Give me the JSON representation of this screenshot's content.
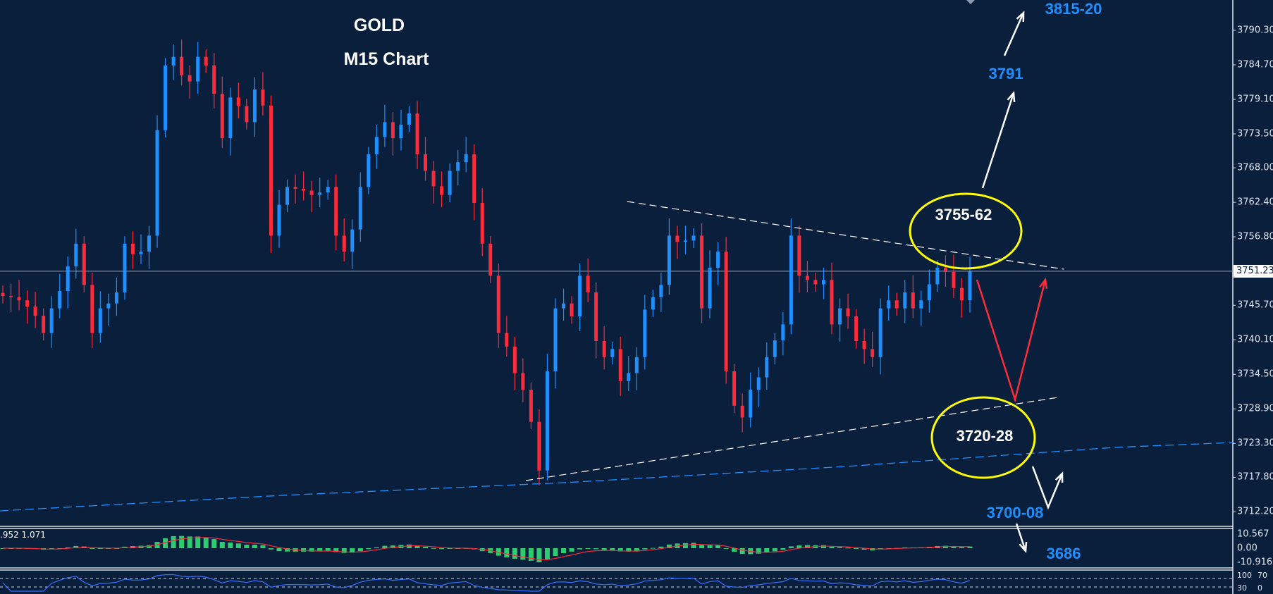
{
  "title": {
    "line1": "GOLD",
    "line2": "M15 Chart"
  },
  "colors": {
    "background": "#0a1f3c",
    "bull": "#1e8fff",
    "bear": "#ff2a3a",
    "zone_circle": "#ffff00",
    "target_text": "#1e8fff",
    "macd_hist": "#2ecc71",
    "macd_signal": "#ff2a3a",
    "rsi_line": "#3a6fff",
    "ma_line": "#1e8fff"
  },
  "chart_data": {
    "type": "candlestick",
    "symbol": "GOLD",
    "timeframe": "M15",
    "ylim": [
      3709,
      3795
    ],
    "y_ticks": [
      "3790.30",
      "3784.70",
      "3779.10",
      "3773.50",
      "3768.00",
      "3762.40",
      "3756.80",
      "3745.70",
      "3740.10",
      "3734.50",
      "3728.90",
      "3723.30",
      "3717.80",
      "3712.20"
    ],
    "current_price": "3751.23",
    "closes": [
      3747.2,
      3747,
      3746.5,
      3745.5,
      3744,
      3741.2,
      3745.2,
      3748,
      3752,
      3755.7,
      3749,
      3741.2,
      3745.2,
      3746,
      3747.8,
      3755.7,
      3754,
      3754.4,
      3757,
      3774.1,
      3784.6,
      3786,
      3783,
      3782,
      3786,
      3784.6,
      3780,
      3772.8,
      3779.4,
      3778,
      3775.4,
      3780.7,
      3778.1,
      3757,
      3762,
      3764.9,
      3764.6,
      3764.3,
      3763.6,
      3764,
      3764.9,
      3757,
      3754.4,
      3758,
      3764.9,
      3770.2,
      3773,
      3775.4,
      3772.8,
      3775,
      3776.8,
      3770.2,
      3767.5,
      3765,
      3763.6,
      3767.5,
      3768.9,
      3770.2,
      3762.3,
      3755.7,
      3750.5,
      3741.2,
      3739,
      3734.7,
      3732,
      3726.8,
      3718.9,
      3735,
      3745.2,
      3746,
      3743.9,
      3750.5,
      3747.8,
      3739.9,
      3737.3,
      3738.6,
      3733.4,
      3734.7,
      3737.3,
      3745,
      3747,
      3749,
      3757,
      3756,
      3756.2,
      3757,
      3745.2,
      3751.8,
      3754.4,
      3735,
      3729.4,
      3727.5,
      3732,
      3734,
      3737.3,
      3740,
      3742.6,
      3757,
      3750.5,
      3749.8,
      3749.1,
      3749.8,
      3742.6,
      3745.2,
      3743.9,
      3739.9,
      3738.6,
      3737.3,
      3745.2,
      3746.5,
      3745.2,
      3747.8,
      3745.2,
      3746.5,
      3749.1,
      3751.8,
      3751.1,
      3748.5,
      3746.5,
      3751.2
    ]
  },
  "annotations": {
    "zones": [
      {
        "label": "3755-62"
      },
      {
        "label": "3720-28"
      }
    ],
    "targets": [
      {
        "label": "3815-20"
      },
      {
        "label": "3791"
      },
      {
        "label": "3700-08"
      },
      {
        "label": "3686"
      }
    ]
  },
  "macd": {
    "label": ".952 1.071",
    "ticks": [
      "10.567",
      "0.00",
      "-10.916"
    ]
  },
  "rsi": {
    "ticks": [
      "100",
      "70",
      "30",
      "0"
    ]
  }
}
